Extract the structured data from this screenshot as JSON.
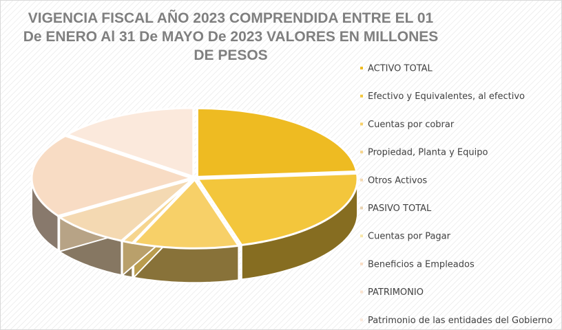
{
  "chart_data": {
    "type": "pie3d",
    "title": "VIGENCIA FISCAL AÑO 2023 COMPRENDIDA ENTRE EL 01 De ENERO Al 31 De MAYO De  2023 VALORES EN MILLONES DE PESOS",
    "categories": [
      "ACTIVO TOTAL",
      "Efectivo y Equivalentes, al efectivo",
      "Cuentas por cobrar",
      "Propiedad, Planta y Equipo",
      "Otros Activos",
      "PASIVO TOTAL",
      "Cuentas por Pagar",
      "Beneficios a Empleados",
      "PATRIMONIO",
      "Patrimonio de las entidades del Gobierno"
    ],
    "values": [
      23.6,
      21.7,
      10.6,
      1.1,
      8.3,
      0,
      0,
      19.7,
      0,
      14.4
    ],
    "colors": [
      "#eebb22",
      "#f3c63c",
      "#f7d068",
      "#f6d58e",
      "#f4d9b2",
      "#e8d2b0",
      "#f7e6a8",
      "#f8dcc4",
      "#fae3cf",
      "#fbe9dc"
    ],
    "legend": "right"
  }
}
